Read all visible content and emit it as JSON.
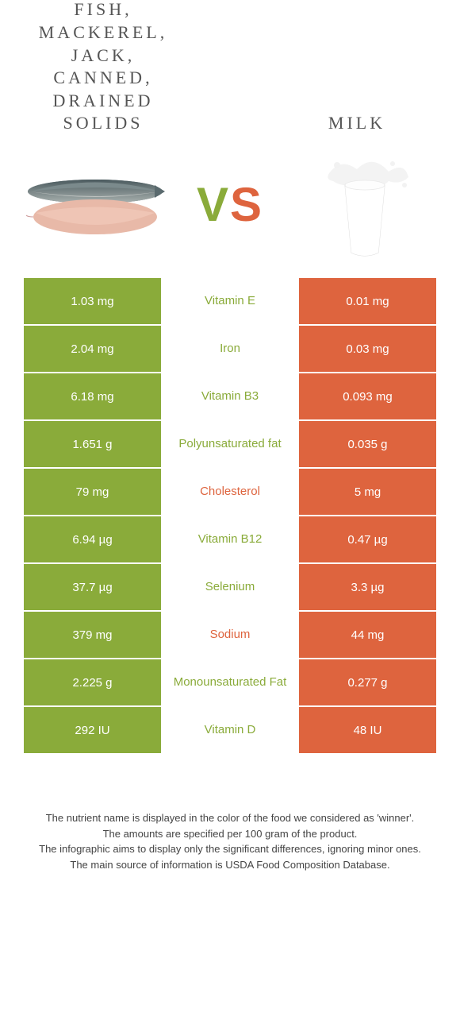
{
  "header": {
    "left_title": "FISH, MACKEREL, JACK, CANNED, DRAINED SOLIDS",
    "right_title": "MILK",
    "vs_v": "V",
    "vs_s": "S"
  },
  "colors": {
    "green": "#8aab3a",
    "orange": "#de643e",
    "background": "#ffffff",
    "text": "#333333",
    "footer_text": "#444444"
  },
  "table": {
    "left_bg": "#8aab3a",
    "right_bg": "#de643e",
    "rows": [
      {
        "left": "1.03 mg",
        "mid": "Vitamin E",
        "winner": "green",
        "right": "0.01 mg"
      },
      {
        "left": "2.04 mg",
        "mid": "Iron",
        "winner": "green",
        "right": "0.03 mg"
      },
      {
        "left": "6.18 mg",
        "mid": "Vitamin B3",
        "winner": "green",
        "right": "0.093 mg"
      },
      {
        "left": "1.651 g",
        "mid": "Polyunsaturated fat",
        "winner": "green",
        "right": "0.035 g"
      },
      {
        "left": "79 mg",
        "mid": "Cholesterol",
        "winner": "orange",
        "right": "5 mg"
      },
      {
        "left": "6.94 µg",
        "mid": "Vitamin B12",
        "winner": "green",
        "right": "0.47 µg"
      },
      {
        "left": "37.7 µg",
        "mid": "Selenium",
        "winner": "green",
        "right": "3.3 µg"
      },
      {
        "left": "379 mg",
        "mid": "Sodium",
        "winner": "orange",
        "right": "44 mg"
      },
      {
        "left": "2.225 g",
        "mid": "Monounsaturated Fat",
        "winner": "green",
        "right": "0.277 g"
      },
      {
        "left": "292 IU",
        "mid": "Vitamin D",
        "winner": "green",
        "right": "48 IU"
      }
    ]
  },
  "footer": {
    "line1": "The nutrient name is displayed in the color of the food we considered as 'winner'.",
    "line2": "The amounts are specified per 100 gram of the product.",
    "line3": "The infographic aims to display only the significant differences, ignoring minor ones.",
    "line4": "The main source of information is USDA Food Composition Database."
  }
}
